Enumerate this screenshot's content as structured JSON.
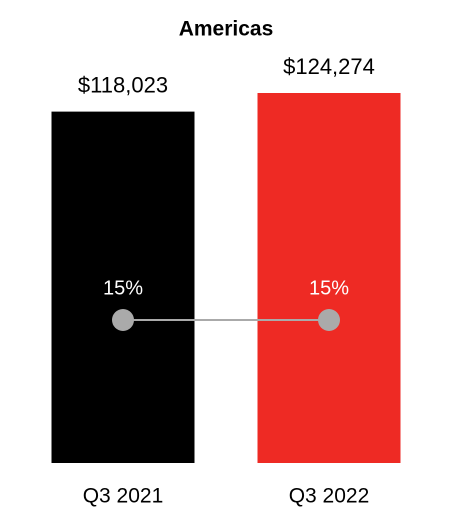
{
  "chart_data": {
    "type": "bar",
    "title": "Americas",
    "categories": [
      "Q3 2021",
      "Q3 2022"
    ],
    "values": [
      118023,
      124274
    ],
    "value_labels": [
      "$118,023",
      "$124,274"
    ],
    "colors": [
      "#000000",
      "#ee2a24"
    ],
    "overlay": {
      "type": "line",
      "values": [
        15,
        15
      ],
      "value_labels": [
        "15%",
        "15%"
      ],
      "color": "#aaaaaa"
    }
  }
}
